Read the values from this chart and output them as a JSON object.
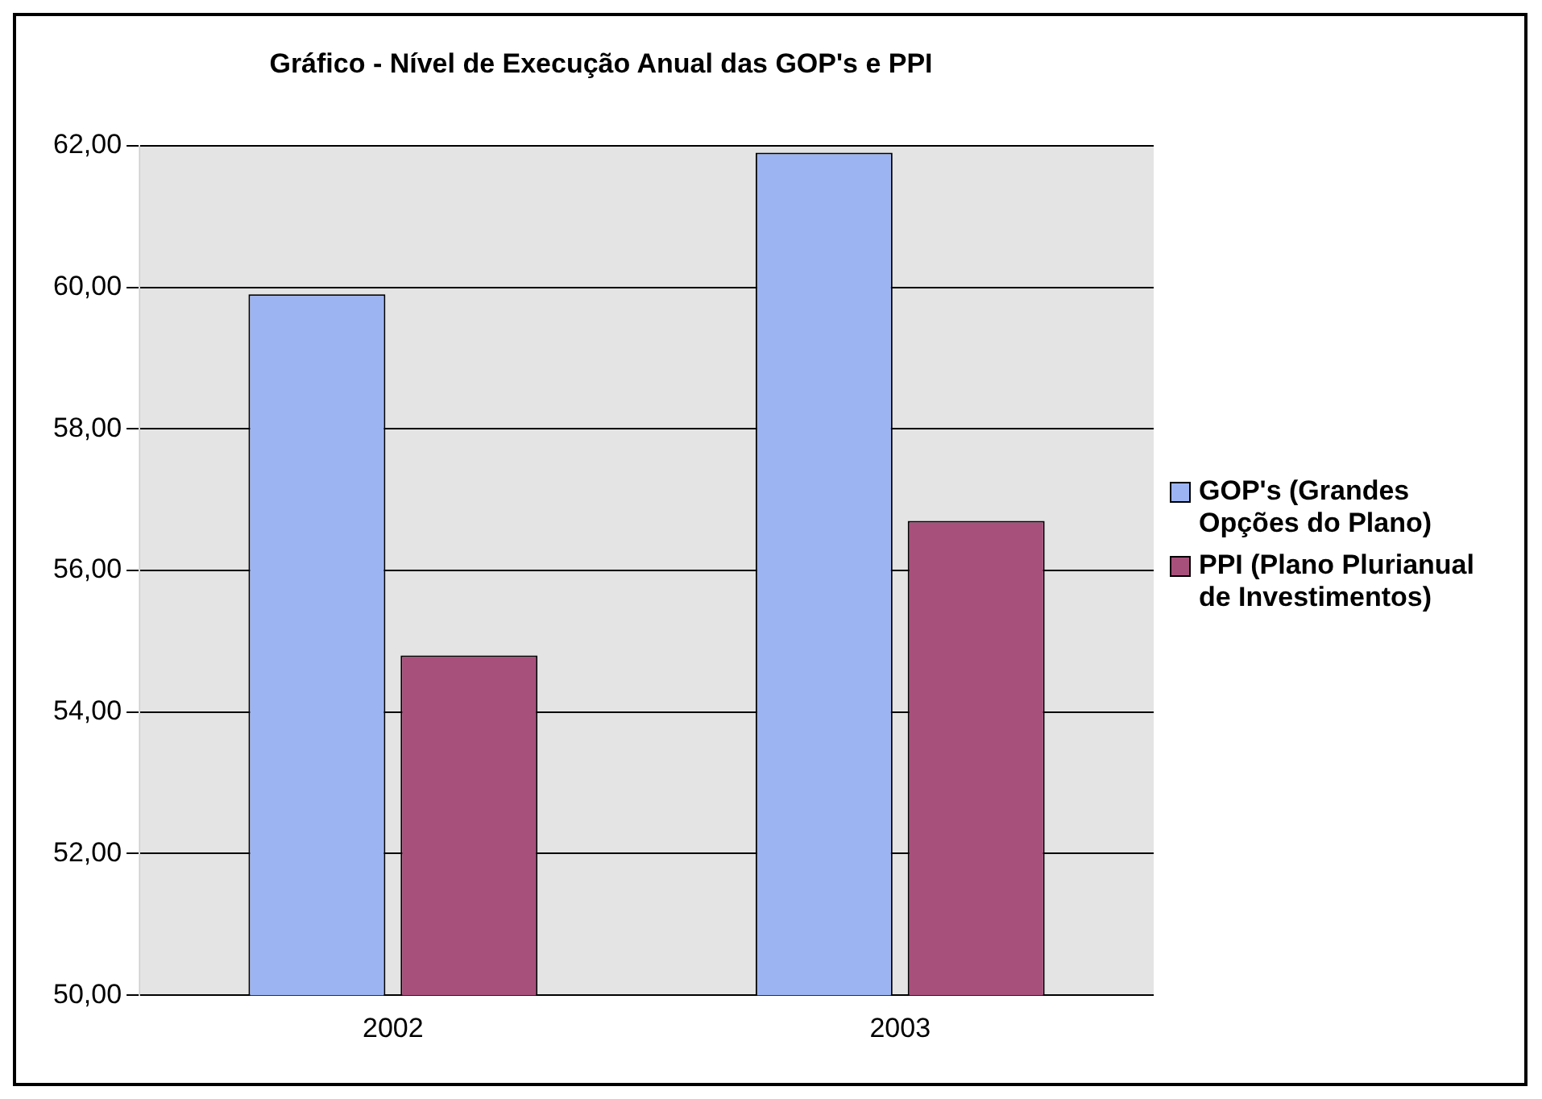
{
  "chart_data": {
    "type": "bar",
    "title": "Gráfico - Nível de Execução Anual das GOP's e PPI",
    "categories": [
      "2002",
      "2003"
    ],
    "series": [
      {
        "name": "GOP's (Grandes Opções do Plano)",
        "color": "#9db4f2",
        "values": [
          59.9,
          61.9
        ]
      },
      {
        "name": "PPI (Plano Plurianual de Investimentos)",
        "color": "#a8507c",
        "values": [
          54.8,
          56.7
        ]
      }
    ],
    "ylim": [
      50,
      62
    ],
    "yticks": [
      {
        "value": 50,
        "label": "50,00"
      },
      {
        "value": 52,
        "label": "52,00"
      },
      {
        "value": 54,
        "label": "54,00"
      },
      {
        "value": 56,
        "label": "56,00"
      },
      {
        "value": 58,
        "label": "58,00"
      },
      {
        "value": 60,
        "label": "60,00"
      },
      {
        "value": 62,
        "label": "62,00"
      }
    ],
    "grid": "y",
    "legend": "right"
  }
}
